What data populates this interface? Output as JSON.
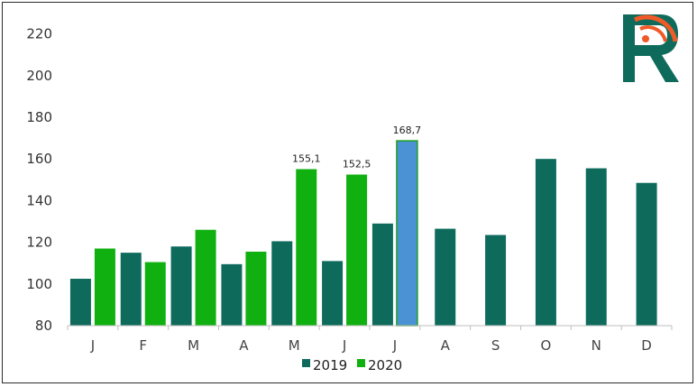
{
  "colors": {
    "series_2019": "#0e6b5c",
    "series_2020": "#11b011",
    "highlight": "#4a92d4",
    "highlight_edge": "#1f9f1f",
    "logo_orange": "#f05a28",
    "logo_green": "#0e6b5c"
  },
  "logo": {
    "icon": "r-rss-logo-icon"
  },
  "chart_data": {
    "type": "bar",
    "categories": [
      "J",
      "F",
      "M",
      "A",
      "M",
      "J",
      "J",
      "A",
      "S",
      "O",
      "N",
      "D"
    ],
    "ylim": [
      80,
      225
    ],
    "yticks": [
      80,
      100,
      120,
      140,
      160,
      180,
      200,
      220
    ],
    "series": [
      {
        "name": "2019",
        "values": [
          102.5,
          115,
          118,
          109.5,
          120.5,
          111,
          129,
          126.5,
          123.5,
          160,
          155.5,
          148.5
        ]
      },
      {
        "name": "2020",
        "values": [
          117,
          110.5,
          126,
          115.5,
          155.1,
          152.5,
          168.7,
          null,
          null,
          null,
          null,
          null
        ]
      }
    ],
    "data_labels": [
      {
        "series": "2020",
        "index": 4,
        "text": "155,1"
      },
      {
        "series": "2020",
        "index": 5,
        "text": "152,5"
      },
      {
        "series": "2020",
        "index": 6,
        "text": "168,7"
      }
    ],
    "highlight": {
      "series": "2020",
      "index": 6
    },
    "legend": [
      "2019",
      "2020"
    ],
    "legend_position": "bottom",
    "title": "",
    "xlabel": "",
    "ylabel": ""
  }
}
